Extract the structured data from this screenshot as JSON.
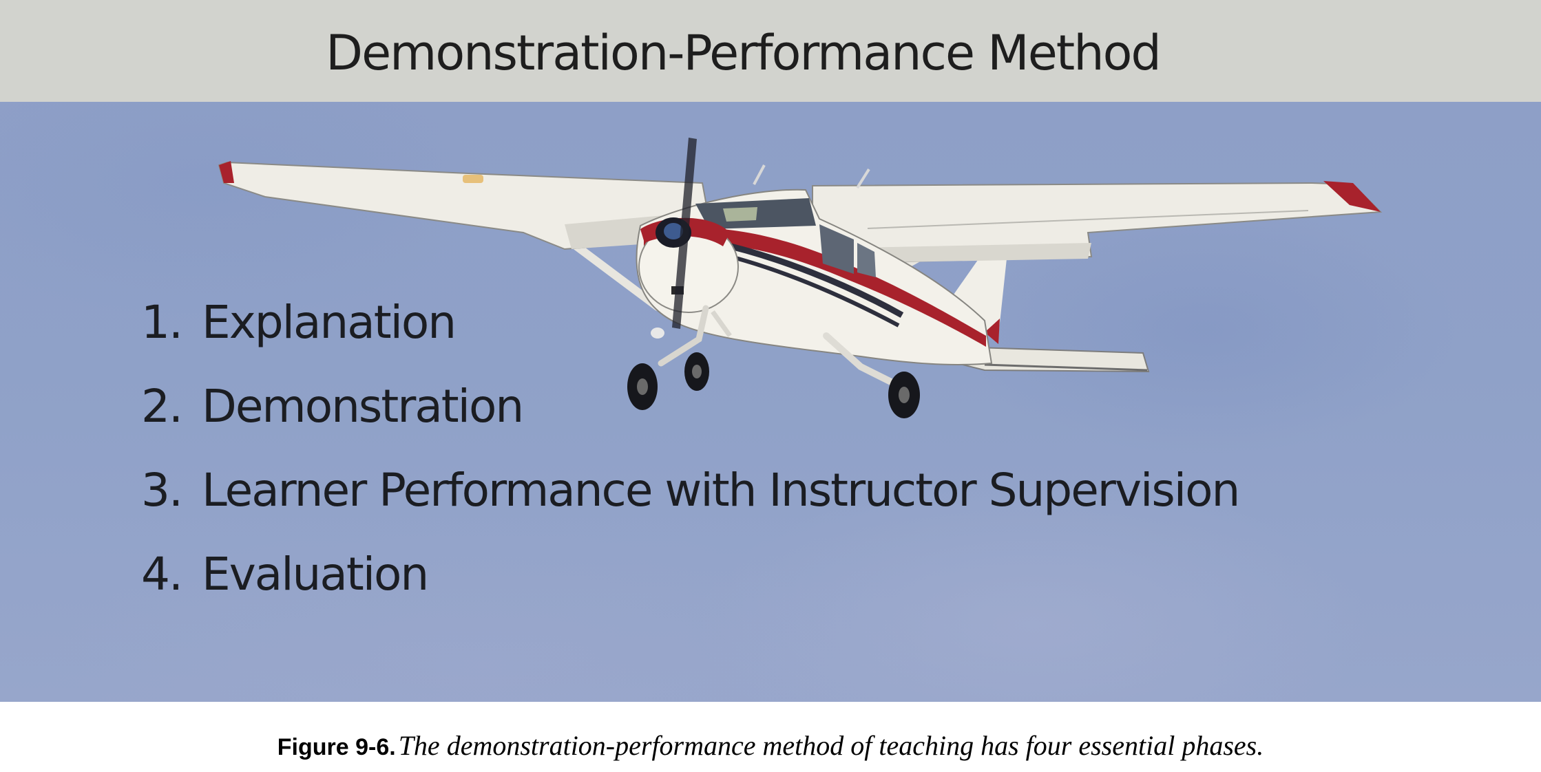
{
  "figure": {
    "title": "Demonstration-Performance Method",
    "phases": [
      {
        "number": "1.",
        "label": "Explanation"
      },
      {
        "number": "2.",
        "label": "Demonstration"
      },
      {
        "number": "3.",
        "label": "Learner Performance with Instructor Supervision"
      },
      {
        "number": "4.",
        "label": "Evaluation"
      }
    ],
    "caption_label": "Figure 9-6.",
    "caption_text": "The demonstration-performance method of teaching has four essential phases."
  },
  "colors": {
    "title_band": "#d2d3ce",
    "sky": "#8fa1c8",
    "aircraft_body": "#f2f0ea",
    "aircraft_stripe": "#a8222c",
    "text": "#1b1d22"
  },
  "icons": {
    "aircraft": "single-engine-high-wing-airplane"
  }
}
